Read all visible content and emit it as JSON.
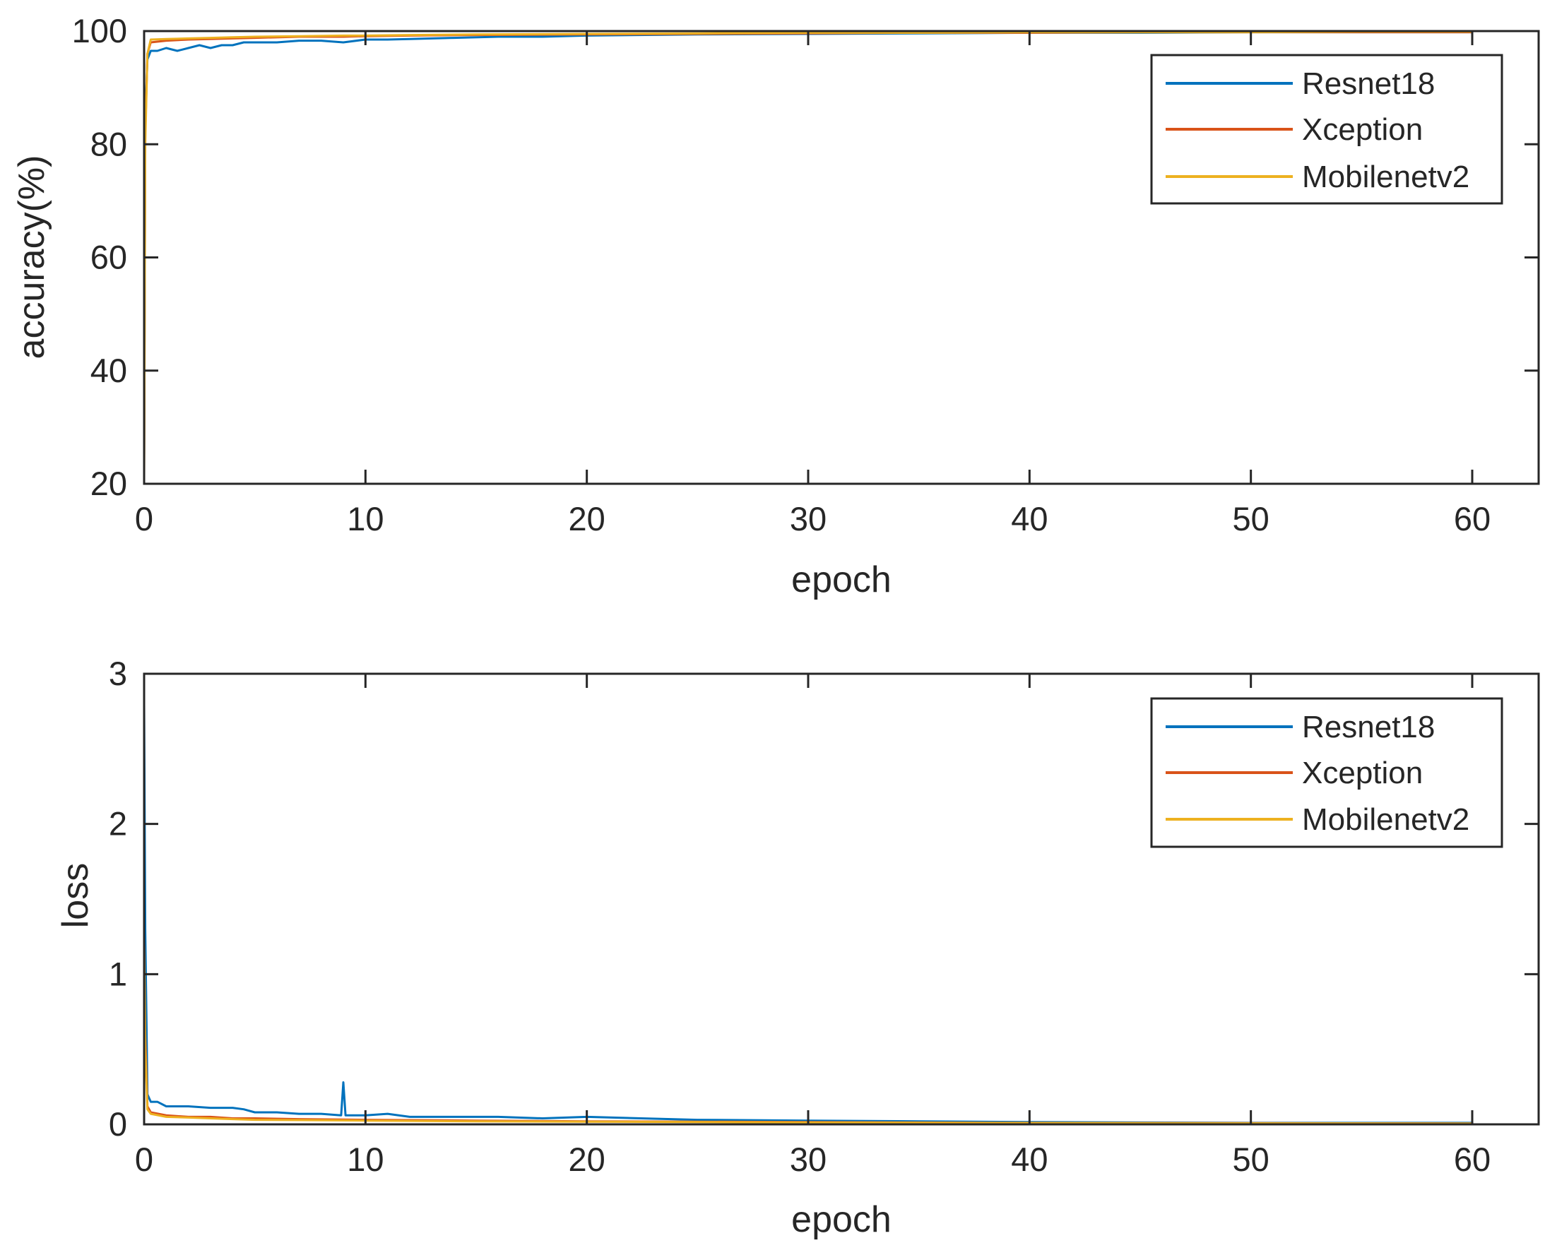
{
  "chart_data": [
    {
      "type": "line",
      "xlabel": "epoch",
      "ylabel": "accuracy(%)",
      "xlim": [
        0,
        63
      ],
      "ylim": [
        20,
        100
      ],
      "xticks": [
        0,
        10,
        20,
        30,
        40,
        50,
        60
      ],
      "yticks": [
        20,
        40,
        60,
        80,
        100
      ],
      "grid": false,
      "legend_position": "top-right",
      "series": [
        {
          "name": "Resnet18",
          "color": "#0072BD",
          "x": [
            0,
            0.05,
            0.15,
            0.3,
            0.6,
            1,
            1.5,
            2,
            2.5,
            3,
            3.5,
            4,
            4.5,
            5,
            6,
            7,
            8,
            9,
            10,
            11,
            12,
            14,
            16,
            18,
            20,
            25,
            30,
            35,
            40,
            45,
            50,
            55,
            60
          ],
          "y": [
            24,
            85,
            95,
            96.5,
            96.5,
            97,
            96.5,
            97,
            97.5,
            97,
            97.5,
            97.5,
            98,
            98,
            98,
            98.3,
            98.3,
            98,
            98.5,
            98.5,
            98.6,
            98.8,
            99,
            99,
            99.2,
            99.4,
            99.5,
            99.6,
            99.7,
            99.7,
            99.8,
            99.8,
            99.8
          ]
        },
        {
          "name": "Xception",
          "color": "#D95319",
          "x": [
            0,
            0.05,
            0.15,
            0.3,
            1,
            2,
            3,
            4,
            5,
            7,
            9,
            10,
            12,
            15,
            20,
            25,
            30,
            35,
            40,
            45,
            50,
            55,
            60
          ],
          "y": [
            22,
            82,
            96,
            98,
            98.3,
            98.5,
            98.6,
            98.7,
            98.8,
            99,
            99,
            99.1,
            99.2,
            99.3,
            99.4,
            99.5,
            99.6,
            99.7,
            99.7,
            99.8,
            99.8,
            99.8,
            99.8
          ]
        },
        {
          "name": "Mobilenetv2",
          "color": "#EDB120",
          "x": [
            0,
            0.05,
            0.15,
            0.3,
            1,
            2,
            3,
            4,
            5,
            7,
            9,
            10,
            12,
            15,
            20,
            25,
            30,
            35,
            40,
            45,
            50,
            55,
            60
          ],
          "y": [
            20,
            80,
            96,
            98.5,
            98.6,
            98.7,
            98.8,
            98.9,
            99,
            99.1,
            99.2,
            99.2,
            99.3,
            99.4,
            99.5,
            99.6,
            99.7,
            99.7,
            99.8,
            99.8,
            99.8,
            99.9,
            99.9
          ]
        }
      ]
    },
    {
      "type": "line",
      "xlabel": "epoch",
      "ylabel": "loss",
      "xlim": [
        0,
        63
      ],
      "ylim": [
        0,
        3
      ],
      "xticks": [
        0,
        10,
        20,
        30,
        40,
        50,
        60
      ],
      "yticks": [
        0,
        1,
        2,
        3
      ],
      "grid": false,
      "legend_position": "top-right",
      "series": [
        {
          "name": "Resnet18",
          "color": "#0072BD",
          "x": [
            0,
            0.05,
            0.15,
            0.3,
            0.6,
            1,
            2,
            3,
            4,
            4.5,
            5,
            6,
            7,
            8,
            8.9,
            9,
            9.1,
            10,
            11,
            12,
            14,
            16,
            18,
            20,
            25,
            30,
            35,
            40,
            45,
            50,
            55,
            60
          ],
          "y": [
            2.8,
            1.3,
            0.2,
            0.15,
            0.15,
            0.12,
            0.12,
            0.11,
            0.11,
            0.1,
            0.08,
            0.08,
            0.07,
            0.07,
            0.06,
            0.28,
            0.06,
            0.06,
            0.07,
            0.05,
            0.05,
            0.05,
            0.04,
            0.05,
            0.03,
            0.025,
            0.02,
            0.015,
            0.012,
            0.01,
            0.01,
            0.01
          ]
        },
        {
          "name": "Xception",
          "color": "#D95319",
          "x": [
            0,
            0.05,
            0.15,
            0.3,
            1,
            2,
            3,
            4,
            5,
            7,
            10,
            15,
            20,
            25,
            30,
            40,
            50,
            60
          ],
          "y": [
            1.25,
            0.6,
            0.12,
            0.08,
            0.06,
            0.05,
            0.05,
            0.04,
            0.04,
            0.035,
            0.03,
            0.025,
            0.02,
            0.018,
            0.015,
            0.01,
            0.008,
            0.006
          ]
        },
        {
          "name": "Mobilenetv2",
          "color": "#EDB120",
          "x": [
            0,
            0.05,
            0.15,
            0.3,
            1,
            2,
            3,
            4,
            5,
            7,
            10,
            15,
            20,
            25,
            30,
            40,
            50,
            60
          ],
          "y": [
            1.2,
            0.5,
            0.1,
            0.07,
            0.05,
            0.045,
            0.04,
            0.035,
            0.03,
            0.028,
            0.025,
            0.02,
            0.018,
            0.015,
            0.012,
            0.009,
            0.007,
            0.005
          ]
        }
      ]
    }
  ]
}
